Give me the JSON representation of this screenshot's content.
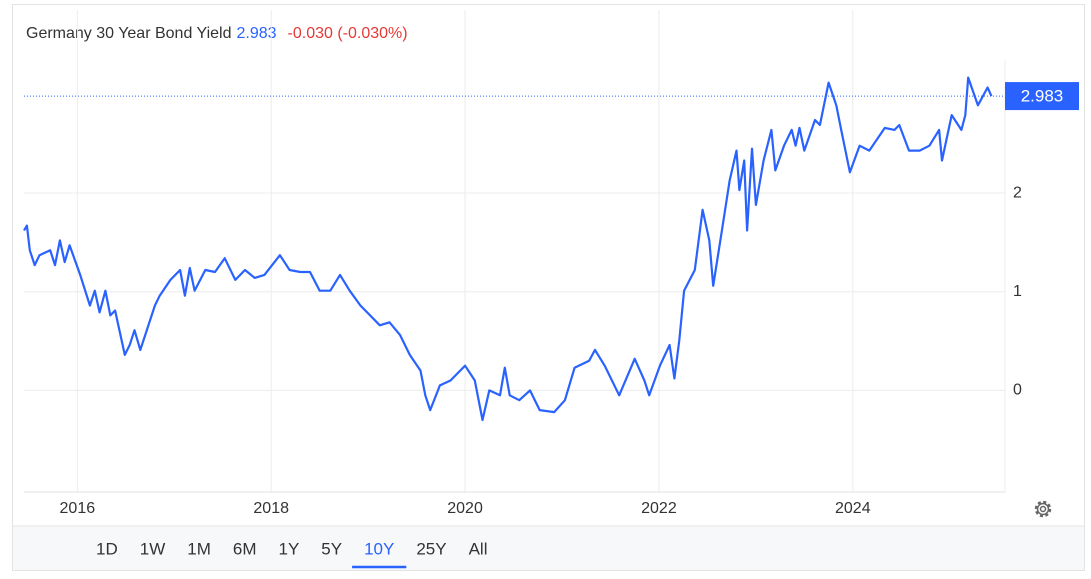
{
  "chart_data": {
    "type": "line",
    "title": "Germany 30 Year Bond Yield",
    "current_value": 2.983,
    "change": "-0.030 (-0.030%)",
    "color": "#2962ff",
    "x": [
      2015.45,
      2015.48,
      2015.51,
      2015.56,
      2015.61,
      2015.72,
      2015.77,
      2015.82,
      2015.87,
      2015.92,
      2016.03,
      2016.13,
      2016.18,
      2016.23,
      2016.29,
      2016.34,
      2016.39,
      2016.49,
      2016.54,
      2016.59,
      2016.65,
      2016.7,
      2016.8,
      2016.85,
      2016.96,
      2017.06,
      2017.11,
      2017.16,
      2017.21,
      2017.32,
      2017.42,
      2017.52,
      2017.63,
      2017.73,
      2017.83,
      2017.93,
      2018.09,
      2018.19,
      2018.3,
      2018.4,
      2018.5,
      2018.61,
      2018.71,
      2018.81,
      2018.92,
      2019.02,
      2019.12,
      2019.22,
      2019.33,
      2019.43,
      2019.54,
      2019.59,
      2019.64,
      2019.74,
      2019.85,
      2019.95,
      2020.0,
      2020.1,
      2020.18,
      2020.25,
      2020.36,
      2020.41,
      2020.46,
      2020.56,
      2020.67,
      2020.77,
      2020.92,
      2021.03,
      2021.13,
      2021.28,
      2021.34,
      2021.44,
      2021.59,
      2021.75,
      2021.85,
      2021.9,
      2022.01,
      2022.11,
      2022.16,
      2022.21,
      2022.26,
      2022.37,
      2022.45,
      2022.52,
      2022.56,
      2022.65,
      2022.73,
      2022.8,
      2022.83,
      2022.88,
      2022.91,
      2022.96,
      2023.0,
      2023.08,
      2023.16,
      2023.2,
      2023.29,
      2023.37,
      2023.41,
      2023.45,
      2023.5,
      2023.61,
      2023.66,
      2023.75,
      2023.83,
      2023.88,
      2023.97,
      2024.07,
      2024.17,
      2024.33,
      2024.43,
      2024.48,
      2024.58,
      2024.69,
      2024.79,
      2024.89,
      2024.92,
      2025.02,
      2025.12,
      2025.16,
      2025.19,
      2025.29,
      2025.39,
      2025.43
    ],
    "values": [
      1.62,
      1.67,
      1.42,
      1.27,
      1.37,
      1.42,
      1.27,
      1.52,
      1.3,
      1.47,
      1.17,
      0.86,
      1.01,
      0.79,
      1.01,
      0.76,
      0.81,
      0.36,
      0.46,
      0.61,
      0.41,
      0.56,
      0.86,
      0.96,
      1.12,
      1.22,
      0.96,
      1.24,
      1.01,
      1.22,
      1.2,
      1.34,
      1.12,
      1.22,
      1.14,
      1.17,
      1.37,
      1.22,
      1.2,
      1.2,
      1.01,
      1.01,
      1.17,
      1.01,
      0.86,
      0.76,
      0.66,
      0.69,
      0.56,
      0.36,
      0.2,
      -0.05,
      -0.2,
      0.05,
      0.1,
      0.2,
      0.25,
      0.1,
      -0.3,
      0.0,
      -0.05,
      0.23,
      -0.05,
      -0.1,
      0.0,
      -0.2,
      -0.22,
      -0.1,
      0.23,
      0.3,
      0.41,
      0.25,
      -0.05,
      0.32,
      0.1,
      -0.05,
      0.25,
      0.46,
      0.12,
      0.51,
      1.01,
      1.22,
      1.83,
      1.52,
      1.06,
      1.62,
      2.13,
      2.43,
      2.03,
      2.33,
      1.62,
      2.45,
      1.88,
      2.33,
      2.64,
      2.23,
      2.48,
      2.64,
      2.48,
      2.66,
      2.43,
      2.74,
      2.69,
      3.12,
      2.89,
      2.64,
      2.21,
      2.48,
      2.43,
      2.66,
      2.64,
      2.69,
      2.43,
      2.43,
      2.48,
      2.64,
      2.33,
      2.79,
      2.64,
      2.79,
      3.17,
      2.89,
      3.07,
      2.983
    ],
    "xlim": [
      2015.45,
      2025.57
    ],
    "ylim": [
      -1.03,
      3.45
    ],
    "xticks": [
      2016,
      2018,
      2020,
      2022,
      2024
    ],
    "yticks": [
      0,
      1,
      2
    ],
    "grid": true,
    "ranges": [
      "1D",
      "1W",
      "1M",
      "6M",
      "1Y",
      "5Y",
      "10Y",
      "25Y",
      "All"
    ],
    "active_range": "10Y"
  }
}
